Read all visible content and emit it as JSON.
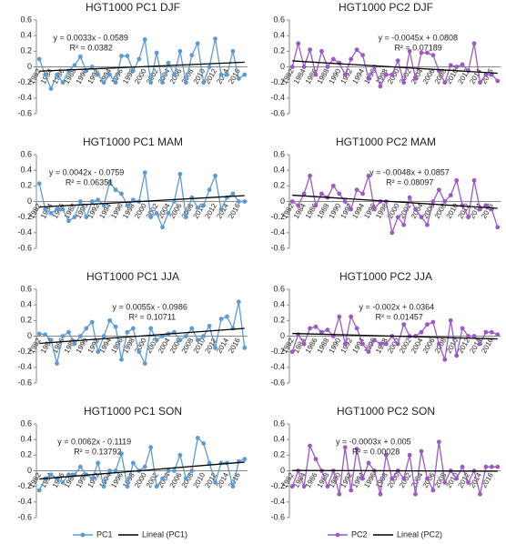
{
  "chart_data": [
    {
      "type": "line",
      "title": "HGT1000 PC1 DJF",
      "categories": [
        "1982",
        null,
        "1984",
        null,
        "1986",
        null,
        "1988",
        null,
        "1990",
        null,
        "1992",
        null,
        "1994",
        null,
        "1996",
        null,
        "1998",
        null,
        "2000",
        null,
        "2002",
        null,
        "2004",
        null,
        "2006",
        null,
        "2008",
        null,
        "2010",
        null,
        "2012",
        null,
        "2014",
        null,
        "2016",
        null
      ],
      "series": [
        {
          "color": "#5b9bd5",
          "values": [
            0.1,
            -0.1,
            -0.28,
            -0.1,
            -0.2,
            -0.05,
            0.02,
            0.13,
            -0.05,
            0.0,
            -0.1,
            -0.2,
            -0.1,
            -0.2,
            0.14,
            0.14,
            -0.05,
            0.1,
            0.35,
            -0.2,
            0.18,
            -0.2,
            0.05,
            -0.1,
            0.2,
            -0.2,
            0.15,
            0.3,
            -0.2,
            0.0,
            0.36,
            -0.1,
            -0.1,
            0.2,
            -0.15,
            -0.1
          ]
        }
      ],
      "trendline": {
        "equation": "y = 0.0033x - 0.0589",
        "r2": "R² = 0.0382",
        "slope": 0.0033,
        "intercept": -0.0589
      },
      "ylim": [
        -0.6,
        0.6
      ],
      "yticks": [
        -0.6,
        -0.4,
        -0.2,
        0,
        0.2,
        0.4,
        0.6
      ]
    },
    {
      "type": "line",
      "title": "HGT1000 PC2 DJF",
      "categories": [
        "1982",
        null,
        "1984",
        null,
        "1986",
        null,
        "1988",
        null,
        "1990",
        null,
        "1992",
        null,
        "1994",
        null,
        "1996",
        null,
        "1998",
        null,
        "2000",
        null,
        "2002",
        null,
        "2004",
        null,
        "2006",
        null,
        "2008",
        null,
        "2010",
        null,
        "2012",
        null,
        "2014",
        null,
        "2016",
        null
      ],
      "series": [
        {
          "color": "#9b59c6",
          "values": [
            0.0,
            0.3,
            0.0,
            0.22,
            -0.1,
            0.2,
            0.0,
            0.1,
            0.05,
            -0.1,
            0.1,
            0.22,
            0.15,
            -0.15,
            0.0,
            -0.25,
            -0.1,
            -0.1,
            0.08,
            -0.2,
            0.2,
            -0.15,
            0.18,
            0.18,
            0.15,
            -0.05,
            -0.2,
            0.02,
            0.0,
            0.03,
            -0.05,
            0.3,
            -0.2,
            -0.1,
            -0.1,
            -0.18
          ]
        }
      ],
      "trendline": {
        "equation": "y = -0.0045x + 0.0808",
        "r2": "R² = 0.07189",
        "slope": -0.0045,
        "intercept": 0.0808
      },
      "ylim": [
        -0.6,
        0.6
      ],
      "yticks": [
        -0.6,
        -0.4,
        -0.2,
        0,
        0.2,
        0.4,
        0.6
      ]
    },
    {
      "type": "line",
      "title": "HGT1000 PC1 MAM",
      "categories": [
        "1982",
        null,
        "1984",
        null,
        "1986",
        null,
        "1988",
        null,
        "1990",
        null,
        "1992",
        null,
        "1994",
        null,
        "1996",
        null,
        "1998",
        null,
        "2000",
        null,
        "2002",
        null,
        "2004",
        null,
        "2006",
        null,
        "2008",
        null,
        "2010",
        null,
        "2012",
        null,
        "2014",
        null,
        "2016",
        null
      ],
      "series": [
        {
          "color": "#5b9bd5",
          "values": [
            0.23,
            -0.1,
            -0.15,
            -0.1,
            -0.1,
            -0.25,
            -0.2,
            0.0,
            -0.2,
            0.0,
            0.02,
            -0.05,
            0.25,
            0.15,
            0.1,
            -0.05,
            0.02,
            0.0,
            0.37,
            -0.2,
            -0.15,
            -0.33,
            -0.15,
            0.0,
            0.35,
            -0.2,
            0.05,
            -0.08,
            -0.05,
            0.15,
            0.33,
            -0.1,
            0.05,
            0.1,
            0.0,
            0.0
          ]
        }
      ],
      "trendline": {
        "equation": "y = 0.0042x - 0.0759",
        "r2": "R² = 0.06351",
        "slope": 0.0042,
        "intercept": -0.0759
      },
      "ylim": [
        -0.6,
        0.6
      ],
      "yticks": [
        -0.6,
        -0.4,
        -0.2,
        0,
        0.2,
        0.4,
        0.6
      ]
    },
    {
      "type": "line",
      "title": "HGT1000 PC2 MAM",
      "categories": [
        "1982",
        null,
        "1984",
        null,
        "1986",
        null,
        "1988",
        null,
        "1990",
        null,
        "1992",
        null,
        "1994",
        null,
        "1996",
        null,
        "1998",
        null,
        "2000",
        null,
        "2002",
        null,
        "2004",
        null,
        "2006",
        null,
        "2008",
        null,
        "2010",
        null,
        "2012",
        null,
        "2014",
        null,
        "2016",
        null
      ],
      "series": [
        {
          "color": "#9b59c6",
          "values": [
            0.0,
            -0.05,
            0.1,
            0.33,
            -0.05,
            0.1,
            0.05,
            0.2,
            0.1,
            0.0,
            -0.1,
            0.15,
            0.1,
            0.33,
            -0.1,
            0.0,
            0.0,
            -0.4,
            -0.2,
            -0.3,
            0.05,
            -0.1,
            -0.2,
            -0.3,
            0.0,
            0.15,
            0.0,
            0.08,
            0.27,
            -0.05,
            -0.2,
            0.27,
            -0.1,
            -0.05,
            -0.1,
            -0.33
          ]
        }
      ],
      "trendline": {
        "equation": "y = -0.0048x + 0.0857",
        "r2": "R² = 0.08097",
        "slope": -0.0048,
        "intercept": 0.0857
      },
      "ylim": [
        -0.6,
        0.6
      ],
      "yticks": [
        -0.6,
        -0.4,
        -0.2,
        0,
        0.2,
        0.4,
        0.6
      ]
    },
    {
      "type": "line",
      "title": "HGT1000 PC1 JJA",
      "categories": [
        "1982",
        null,
        "1984",
        null,
        "1986",
        null,
        "1988",
        null,
        "1990",
        null,
        "1992",
        null,
        "1994",
        null,
        "1996",
        null,
        "1998",
        null,
        "2000",
        null,
        "2002",
        null,
        "2004",
        null,
        "2006",
        null,
        "2008",
        null,
        "2010",
        null,
        "2012",
        null,
        "2014",
        null,
        "2016",
        null
      ],
      "series": [
        {
          "color": "#5b9bd5",
          "values": [
            0.03,
            0.02,
            -0.05,
            -0.35,
            0.0,
            0.05,
            -0.1,
            0.0,
            0.1,
            0.18,
            -0.2,
            0.0,
            0.2,
            0.12,
            -0.3,
            0.05,
            0.1,
            -0.2,
            -0.35,
            0.1,
            -0.05,
            0.0,
            0.03,
            0.05,
            -0.05,
            0.0,
            0.1,
            -0.05,
            0.0,
            0.13,
            -0.15,
            0.22,
            0.25,
            0.1,
            0.44,
            -0.15
          ]
        }
      ],
      "trendline": {
        "equation": "y = 0.0055x - 0.0986",
        "r2": "R² = 0.10711",
        "slope": 0.0055,
        "intercept": -0.0986
      },
      "ylim": [
        -0.6,
        0.6
      ],
      "yticks": [
        -0.6,
        -0.4,
        -0.2,
        0,
        0.2,
        0.4,
        0.6
      ]
    },
    {
      "type": "line",
      "title": "HGT1000 PC2 JJA",
      "categories": [
        "1982",
        null,
        "1984",
        null,
        "1986",
        null,
        "1988",
        null,
        "1990",
        null,
        "1992",
        null,
        "1994",
        null,
        "1996",
        null,
        "1998",
        null,
        "2000",
        null,
        "2002",
        null,
        "2004",
        null,
        "2006",
        null,
        "2008",
        null,
        "2010",
        null,
        "2012",
        null,
        "2014",
        null,
        "2016",
        null
      ],
      "series": [
        {
          "color": "#9b59c6",
          "values": [
            -0.2,
            0.02,
            -0.1,
            0.1,
            0.12,
            0.05,
            0.08,
            0.0,
            0.25,
            -0.1,
            0.25,
            0.1,
            -0.1,
            -0.2,
            -0.05,
            -0.1,
            -0.1,
            0.0,
            -0.1,
            0.15,
            0.0,
            0.0,
            0.05,
            0.15,
            0.18,
            -0.1,
            -0.3,
            0.2,
            -0.25,
            0.1,
            0.0,
            0.0,
            -0.1,
            0.05,
            0.05,
            0.02
          ]
        }
      ],
      "trendline": {
        "equation": "y = -0.002x + 0.0364",
        "r2": "R² = 0.01457",
        "slope": -0.002,
        "intercept": 0.0364
      },
      "ylim": [
        -0.6,
        0.6
      ],
      "yticks": [
        -0.6,
        -0.4,
        -0.2,
        0,
        0.2,
        0.4,
        0.6
      ]
    },
    {
      "type": "line",
      "title": "HGT1000 PC1 SON",
      "categories": [
        "1982",
        null,
        "1984",
        null,
        "1986",
        null,
        "1988",
        null,
        "1990",
        null,
        "1992",
        null,
        "1994",
        null,
        "1996",
        null,
        "1998",
        null,
        "2000",
        null,
        "2002",
        null,
        "2004",
        null,
        "2006",
        null,
        "2008",
        null,
        "2010",
        null,
        "2012",
        null,
        "2014",
        null,
        "2016",
        null
      ],
      "series": [
        {
          "name": "PC1",
          "color": "#5b9bd5",
          "values": [
            -0.25,
            -0.1,
            -0.05,
            -0.1,
            -0.15,
            -0.05,
            -0.05,
            0.05,
            -0.05,
            -0.1,
            0.1,
            -0.2,
            0.0,
            0.0,
            0.22,
            -0.2,
            0.1,
            0.0,
            0.05,
            0.3,
            -0.2,
            -0.1,
            0.0,
            0.0,
            0.2,
            -0.1,
            0.0,
            0.42,
            0.35,
            0.1,
            -0.15,
            0.1,
            0.1,
            -0.2,
            0.12,
            0.15
          ]
        }
      ],
      "trendline": {
        "name": "Lineal (PC1)",
        "equation": "y = 0.0062x - 0.1119",
        "r2": "R² = 0.13792",
        "slope": 0.0062,
        "intercept": -0.1119
      },
      "ylim": [
        -0.6,
        0.6
      ],
      "yticks": [
        -0.6,
        -0.4,
        -0.2,
        0,
        0.2,
        0.4,
        0.6
      ]
    },
    {
      "type": "line",
      "title": "HGT1000 PC2 SON",
      "categories": [
        "1982",
        null,
        "1984",
        null,
        "1986",
        null,
        "1988",
        null,
        "1990",
        null,
        "1992",
        null,
        "1994",
        null,
        "1996",
        null,
        "1998",
        null,
        "2000",
        null,
        "2002",
        null,
        "2004",
        null,
        "2006",
        null,
        "2008",
        null,
        "2010",
        null,
        "2012",
        null,
        "2014",
        null,
        "2016",
        null
      ],
      "series": [
        {
          "name": "PC2",
          "color": "#9b59c6",
          "values": [
            -0.2,
            0.0,
            -0.2,
            0.32,
            0.15,
            0.0,
            -0.2,
            0.0,
            -0.3,
            0.3,
            -0.25,
            0.28,
            -0.1,
            0.1,
            0.0,
            -0.3,
            0.2,
            -0.1,
            0.0,
            -0.1,
            0.2,
            -0.3,
            0.25,
            -0.1,
            -0.25,
            0.37,
            -0.15,
            0.0,
            -0.1,
            0.05,
            -0.15,
            0.0,
            -0.3,
            0.05,
            0.05,
            0.05
          ]
        }
      ],
      "trendline": {
        "name": "Lineal (PC2)",
        "equation": "y = -0.0003x + 0.005",
        "r2": "R² = 0.00028",
        "slope": -0.0003,
        "intercept": 0.005
      },
      "ylim": [
        -0.6,
        0.6
      ],
      "yticks": [
        -0.6,
        -0.4,
        -0.2,
        0,
        0.2,
        0.4,
        0.6
      ]
    }
  ]
}
